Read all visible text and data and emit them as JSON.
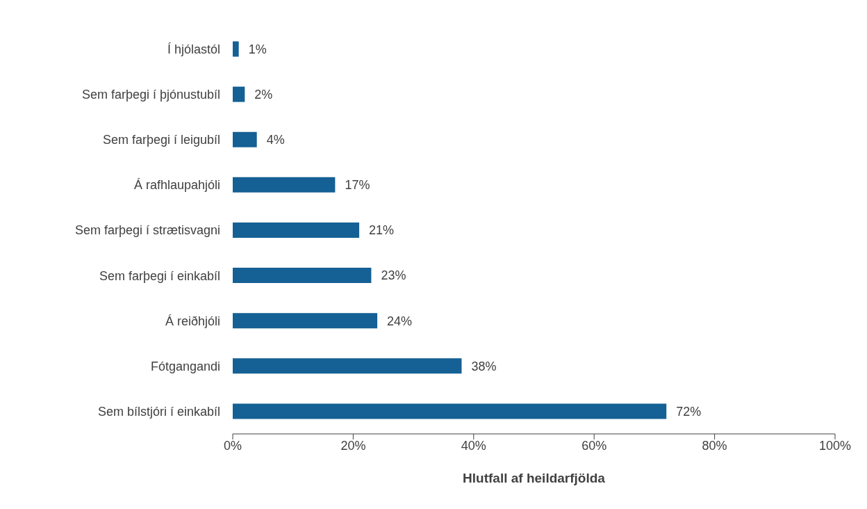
{
  "chart_data": {
    "type": "bar",
    "orientation": "horizontal",
    "xlabel": "Hlutfall af heildarfjölda",
    "categories": [
      "Í hjólastól",
      "Sem farþegi í þjónustubíl",
      "Sem farþegi í leigubíl",
      "Á rafhlaupahjóli",
      "Sem farþegi í strætisvagni",
      "Sem farþegi í einkabíl",
      "Á reiðhjóli",
      "Fótgangandi",
      "Sem bílstjóri í einkabíl"
    ],
    "values": [
      1,
      2,
      4,
      17,
      21,
      23,
      24,
      38,
      72
    ],
    "value_labels": [
      "1%",
      "2%",
      "4%",
      "17%",
      "21%",
      "23%",
      "24%",
      "38%",
      "72%"
    ],
    "color": "#156094",
    "xlim": [
      0,
      100
    ],
    "xticks": [
      {
        "value": 0,
        "label": "0%"
      },
      {
        "value": 20,
        "label": "20%"
      },
      {
        "value": 40,
        "label": "40%"
      },
      {
        "value": 60,
        "label": "60%"
      },
      {
        "value": 80,
        "label": "80%"
      },
      {
        "value": 100,
        "label": "100%"
      }
    ],
    "grid": false,
    "legend": false
  }
}
